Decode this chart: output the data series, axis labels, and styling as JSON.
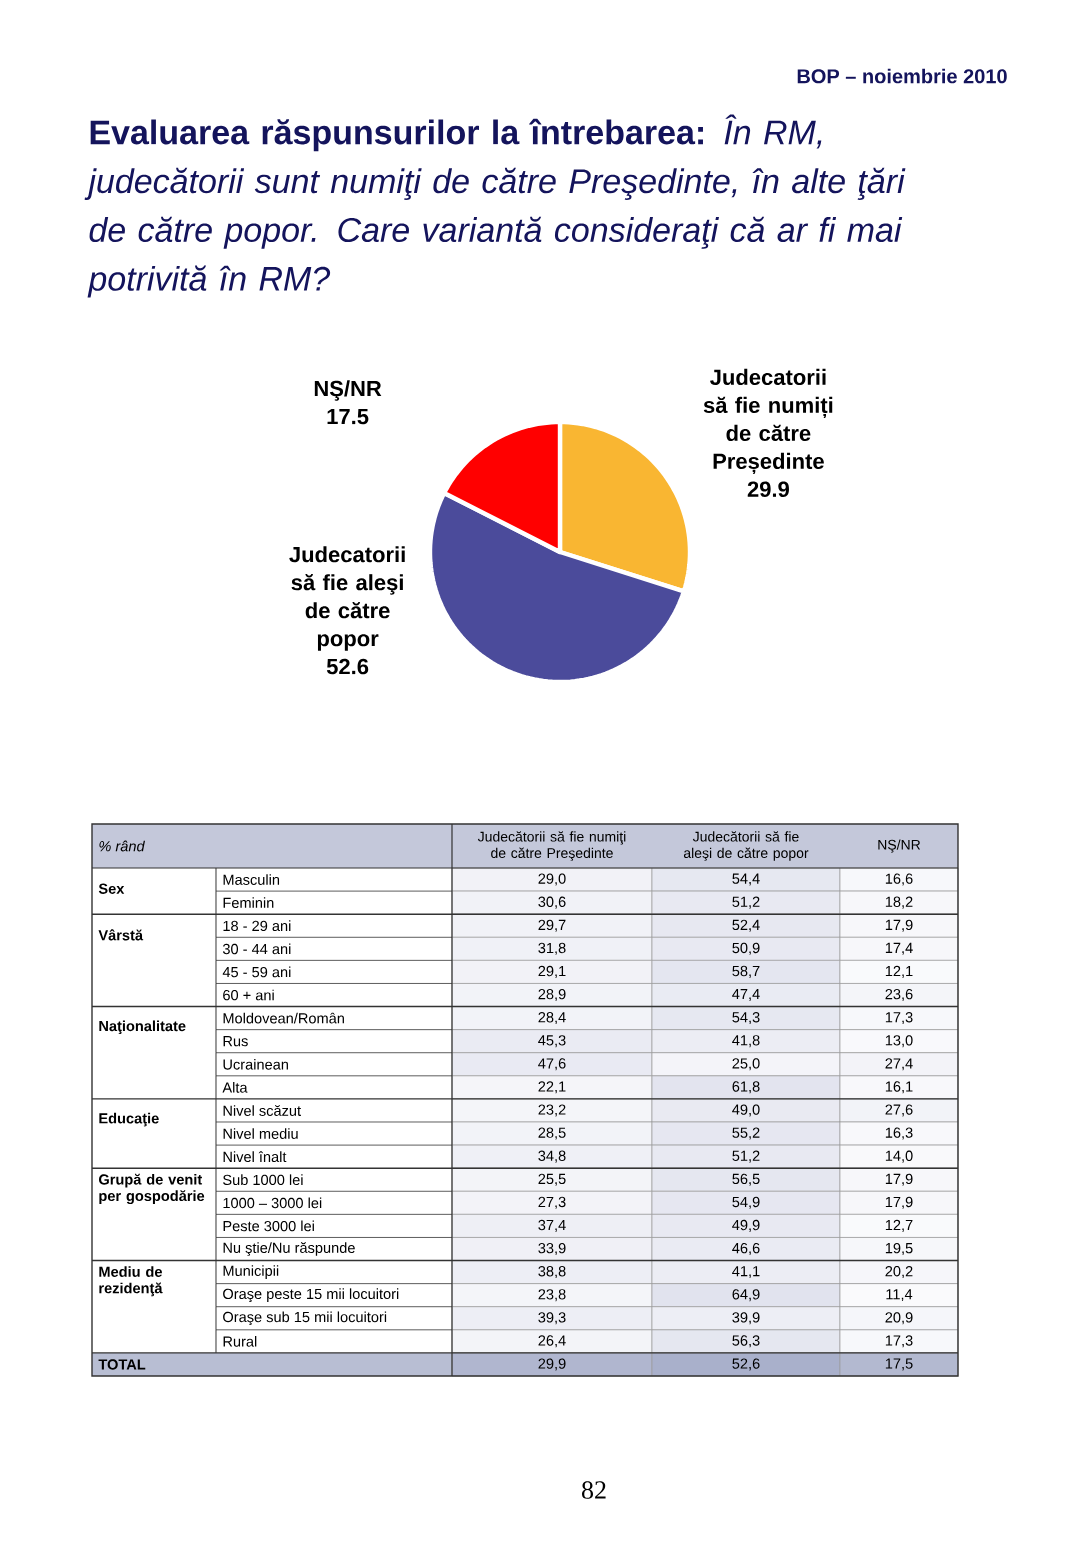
{
  "chart_data": [
    {
      "type": "pie",
      "title": "**Evaluarea răspunsurilor la întrebarea:** *În RM, judecătorii sunt numiţi de către Preşedinte, în alte ţări de către popor. Care variantă consideraţi că ar fi mai potrivită în RM?*",
      "categories": [
        "Judecatorii să fie numiți de către Președinte",
        "Judecatorii să fie aleşi de către popor",
        "NŞ/NR"
      ],
      "values": [
        29.9,
        52.6,
        17.5
      ],
      "colors": [
        "#f9b632",
        "#4b4b9b",
        "#ff0000"
      ],
      "data_labels": true,
      "annotations": [
        "BOP – noiembrie 2010"
      ]
    },
    {
      "type": "heatmap",
      "ylabel": "% rând",
      "categories": [
        "Judecătorii să fie numiţi de către Preşedinte",
        "Judecătorii să fie aleşi de către popor",
        "NŞ/NR"
      ],
      "y_categories": [
        "Masculin",
        "Feminin",
        "18 - 29 ani",
        "30 - 44 ani",
        "45 - 59 ani",
        "60 + ani",
        "Moldovean/Român",
        "Rus",
        "Ucrainean",
        "Alta",
        "Nivel scăzut",
        "Nivel mediu",
        "Nivel înalt",
        "Sub 1000 lei",
        "1000 – 3000 lei",
        "Peste 3000 lei",
        "Nu ştie/Nu răspunde",
        "Municipii",
        "Oraşe peste 15 mii locuitori",
        "Oraşe sub 15 mii locuitori",
        "Rural",
        null
      ],
      "y2_categories": [
        "Sex",
        null,
        "Vârstă",
        null,
        null,
        null,
        "Naţionalitate",
        null,
        null,
        null,
        "Educaţie",
        null,
        null,
        "Grupă de venit per gospodărie",
        null,
        null,
        null,
        "Mediu de rezidenţă",
        null,
        null,
        null,
        "TOTAL"
      ],
      "cells": [
        [
          29.0,
          54.4,
          16.6
        ],
        [
          30.6,
          51.2,
          18.2
        ],
        [
          29.7,
          52.4,
          17.9
        ],
        [
          31.8,
          50.9,
          17.4
        ],
        [
          29.1,
          58.7,
          12.1
        ],
        [
          28.9,
          47.4,
          23.6
        ],
        [
          28.4,
          54.3,
          17.3
        ],
        [
          45.3,
          41.8,
          13.0
        ],
        [
          47.6,
          25.0,
          27.4
        ],
        [
          22.1,
          61.8,
          16.1
        ],
        [
          23.2,
          49.0,
          27.6
        ],
        [
          28.5,
          55.2,
          16.3
        ],
        [
          34.8,
          51.2,
          14.0
        ],
        [
          25.5,
          56.5,
          17.9
        ],
        [
          27.3,
          54.9,
          17.9
        ],
        [
          37.4,
          49.9,
          12.7
        ],
        [
          33.9,
          46.6,
          19.5
        ],
        [
          38.8,
          41.1,
          20.2
        ],
        [
          23.8,
          64.9,
          11.4
        ],
        [
          39.3,
          39.9,
          20.9
        ],
        [
          26.4,
          56.3,
          17.3
        ],
        [
          29.9,
          52.6,
          17.5
        ]
      ],
      "cell_labels": [
        [
          "29,0",
          "54,4",
          "16,6"
        ],
        [
          "30,6",
          "51,2",
          "18,2"
        ],
        [
          "29,7",
          "52,4",
          "17,9"
        ],
        [
          "31,8",
          "50,9",
          "17,4"
        ],
        [
          "29,1",
          "58,7",
          "12,1"
        ],
        [
          "28,9",
          "47,4",
          "23,6"
        ],
        [
          "28,4",
          "54,3",
          "17,3"
        ],
        [
          "45,3",
          "41,8",
          "13,0"
        ],
        [
          "47,6",
          "25,0",
          "27,4"
        ],
        [
          "22,1",
          "61,8",
          "16,1"
        ],
        [
          "23,2",
          "49,0",
          "27,6"
        ],
        [
          "28,5",
          "55,2",
          "16,3"
        ],
        [
          "34,8",
          "51,2",
          "14,0"
        ],
        [
          "25,5",
          "56,5",
          "17,9"
        ],
        [
          "27,3",
          "54,9",
          "17,9"
        ],
        [
          "37,4",
          "49,9",
          "12,7"
        ],
        [
          "33,9",
          "46,6",
          "19,5"
        ],
        [
          "38,8",
          "41,1",
          "20,2"
        ],
        [
          "23,8",
          "64,9",
          "11,4"
        ],
        [
          "39,3",
          "39,9",
          "20,9"
        ],
        [
          "26,4",
          "56,3",
          "17,3"
        ],
        [
          "29,9",
          "52,6",
          "17,5"
        ]
      ],
      "annotations": [
        "82"
      ]
    }
  ]
}
